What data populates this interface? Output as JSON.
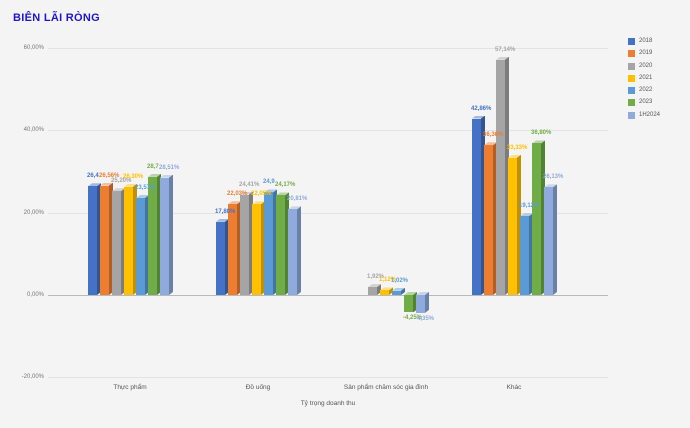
{
  "chart_data": {
    "type": "bar",
    "style": "3d-clustered",
    "title": "BIÊN LÃI RÒNG",
    "title_color": "#1f16c9",
    "xlabel": "Tỷ trọng doanh thu",
    "ylabel": "",
    "ylim": [
      -20,
      60
    ],
    "grid": true,
    "legend_position": "right",
    "background_color": "#f4f4f4",
    "categories": [
      "Thực phẩm",
      "Đồ uống",
      "Sản phẩm chăm sóc gia đình",
      "Khác"
    ],
    "y_ticks": [
      {
        "label": "60,00%",
        "value": 60
      },
      {
        "label": "40,00%",
        "value": 40
      },
      {
        "label": "20,00%",
        "value": 20
      },
      {
        "label": "0,00%",
        "value": 0
      },
      {
        "label": "-20,00%",
        "value": -20
      }
    ],
    "series": [
      {
        "name": "2018",
        "color": "#4472C4",
        "values": [
          26.4,
          17.8,
          null,
          42.86
        ],
        "labels": [
          "26,4",
          "17,80%",
          null,
          "42,86%"
        ]
      },
      {
        "name": "2019",
        "color": "#ED7D31",
        "values": [
          26.56,
          22.03,
          null,
          36.36
        ],
        "labels": [
          "26,56%",
          "22,03%",
          null,
          "36,36%"
        ]
      },
      {
        "name": "2020",
        "color": "#A5A5A5",
        "values": [
          25.2,
          24.41,
          1.92,
          57.14
        ],
        "labels": [
          "25,20%",
          "24,41%",
          "1,92%",
          "57,14%"
        ]
      },
      {
        "name": "2021",
        "color": "#FFC000",
        "values": [
          26.3,
          22.05,
          1.12,
          33.33
        ],
        "labels": [
          "26,30%",
          "22,05%",
          "1,12%",
          "33,33%"
        ]
      },
      {
        "name": "2022",
        "color": "#5B9BD5",
        "values": [
          23.57,
          24.9,
          1.02,
          19.12
        ],
        "labels": [
          "23,57%",
          "24,9",
          "1,02%",
          "19,12%"
        ]
      },
      {
        "name": "2023",
        "color": "#70AD47",
        "values": [
          28.7,
          24.17,
          -4.25,
          36.8
        ],
        "labels": [
          "28,7",
          "24,17%",
          "-4,25%",
          "36,80%"
        ]
      },
      {
        "name": "1H2024",
        "color": "#8FAADC",
        "values": [
          28.51,
          20.81,
          -4.35,
          26.13
        ],
        "labels": [
          "28,51%",
          "20,81%",
          "-4,35%",
          "26,13%"
        ]
      }
    ]
  }
}
